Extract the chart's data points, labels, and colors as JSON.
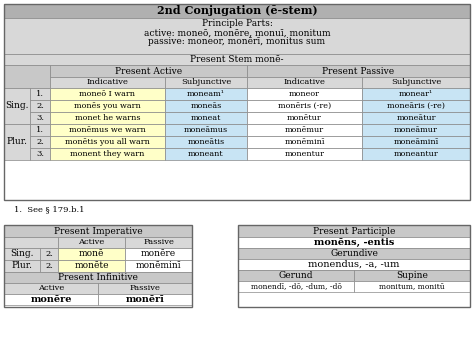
{
  "title": "2nd Conjugation (ē-stem)",
  "principle_parts_label": "Principle Parts:",
  "active_parts": "active: moneō, monēre, monuī, monitum",
  "passive_parts": "passive: moneor, monērī, monitus sum",
  "present_stem": "Present Stem monē-",
  "footnote": "1.  See § 179.b.1",
  "main_table": {
    "rows": [
      [
        "Sing.",
        "1.",
        "moneō I warn",
        "moneam¹",
        "moneor",
        "monear¹"
      ],
      [
        "Sing.",
        "2.",
        "monēs you warn",
        "moneās",
        "monēris (-re)",
        "moneāris (-re)"
      ],
      [
        "Sing.",
        "3.",
        "monet he warns",
        "moneat",
        "monētur",
        "moneātur"
      ],
      [
        "Plur.",
        "1.",
        "monēmus we warn",
        "moneāmus",
        "monēmur",
        "moneāmur"
      ],
      [
        "Plur.",
        "2.",
        "monētis you all warn",
        "moneātis",
        "monēminī",
        "moneāminī"
      ],
      [
        "Plur.",
        "3.",
        "monent they warn",
        "moneant",
        "monentur",
        "moneantur"
      ]
    ]
  },
  "imperative_table": {
    "sing_active": "monē",
    "sing_passive": "monēre",
    "plur_active": "monēte",
    "plur_passive": "monēminī",
    "inf_active": "monēre",
    "inf_passive": "monērī"
  },
  "participle_table": {
    "present_participle": "monēns, -entis",
    "gerundive": "monendus, -a, -um",
    "gerund": "monendī, -dō, -dum, -dō",
    "supine": "monitum, monitū"
  },
  "title_bg": "#b0b0b0",
  "header_bg": "#c8c8c8",
  "subheader_bg": "#d8d8d8",
  "yellow_bg": "#ffffc8",
  "blue_bg": "#c8e4f4",
  "white_bg": "#ffffff"
}
